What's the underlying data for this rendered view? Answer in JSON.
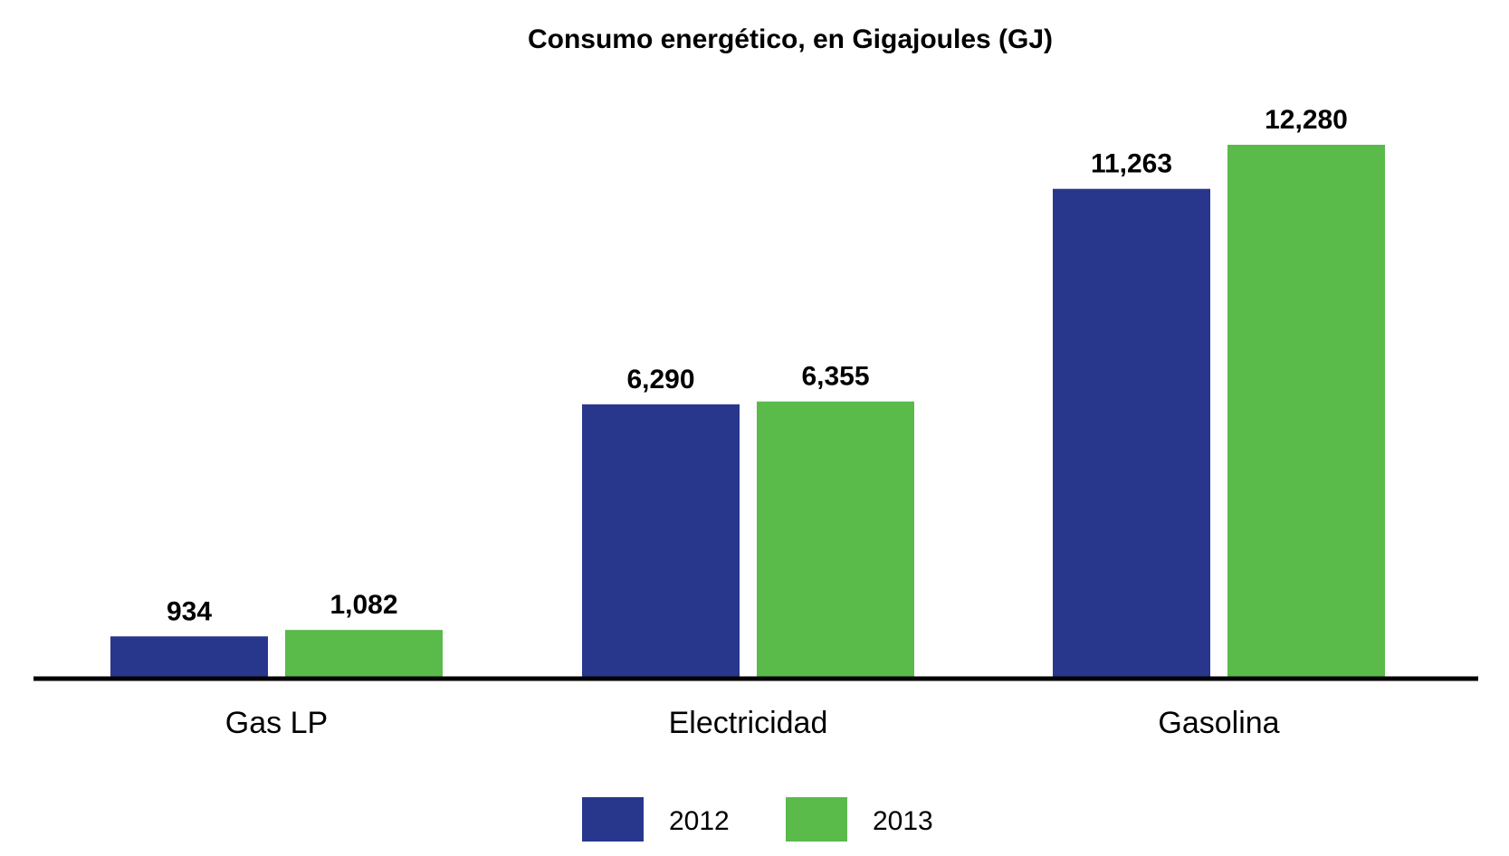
{
  "chart_data": {
    "type": "bar",
    "title": "Consumo energético, en Gigajoules (GJ)",
    "xlabel": "",
    "ylabel": "",
    "categories": [
      "Gas LP",
      "Electricidad",
      "Gasolina"
    ],
    "series": [
      {
        "name": "2012",
        "color": "#28378c",
        "values": [
          934,
          6290,
          11263
        ],
        "labels": [
          "934",
          "6,290",
          "11,263"
        ]
      },
      {
        "name": "2013",
        "color": "#5aba4a",
        "values": [
          1082,
          6355,
          12280
        ],
        "labels": [
          "1,082",
          "6,355",
          "12,280"
        ]
      }
    ],
    "ylim": [
      0,
      15600
    ],
    "grid": false,
    "legend_position": "bottom-center",
    "axis_color": "#000000"
  }
}
